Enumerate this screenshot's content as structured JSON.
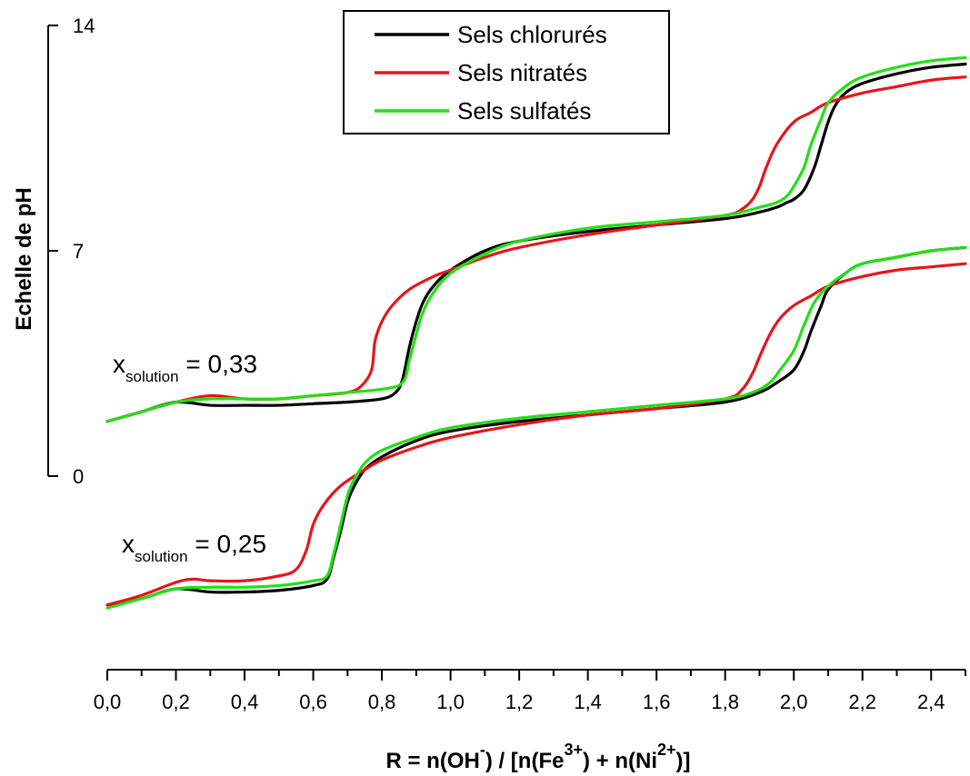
{
  "chart_data": {
    "type": "line",
    "xlabel": "R = n(OH-) / [n(Fe3+) + n(Ni2+)]",
    "xlabel_parts": {
      "base1": "R = n(OH",
      "sup1": "-",
      "base2": ") / [n(Fe",
      "sup2": "3+",
      "base3": ") + n(Ni",
      "sup3": "2+",
      "base4": ")]"
    },
    "ylabel": "Echelle de pH",
    "xlim": [
      0,
      2.5
    ],
    "x_ticks": [
      "0,0",
      "0,2",
      "0,4",
      "0,6",
      "0,8",
      "1,0",
      "1,2",
      "1,4",
      "1,6",
      "1,8",
      "2,0",
      "2,2",
      "2,4"
    ],
    "y_ticks": [
      "0",
      "7",
      "14"
    ],
    "legend": {
      "position": "top-center",
      "entries": [
        {
          "name": "Sels chlorurés",
          "color": "#000000"
        },
        {
          "name": "Sels nitratés",
          "color": "#e8141b"
        },
        {
          "name": "Sels sulfatés",
          "color": "#22e014"
        }
      ]
    },
    "annotations": [
      {
        "base": "x",
        "sub": "solution",
        "rest": " = 0,33"
      },
      {
        "base": "x",
        "sub": "solution",
        "rest": " = 0,25"
      }
    ],
    "groups": [
      {
        "label": "x_solution = 0,33",
        "y_offset": 0,
        "series": [
          {
            "name": "Sels chlorurés",
            "color": "#000000",
            "x": [
              0,
              0.1,
              0.2,
              0.3,
              0.4,
              0.5,
              0.6,
              0.7,
              0.8,
              0.84,
              0.86,
              0.88,
              0.9,
              0.92,
              0.95,
              1.0,
              1.1,
              1.2,
              1.4,
              1.6,
              1.8,
              1.9,
              1.95,
              1.98,
              2.0,
              2.03,
              2.06,
              2.08,
              2.1,
              2.12,
              2.15,
              2.2,
              2.3,
              2.4,
              2.5
            ],
            "y": [
              1.7,
              2.0,
              2.3,
              2.2,
              2.2,
              2.2,
              2.25,
              2.3,
              2.4,
              2.6,
              3.0,
              4.0,
              4.8,
              5.4,
              5.9,
              6.4,
              7.0,
              7.3,
              7.6,
              7.8,
              8.0,
              8.2,
              8.35,
              8.5,
              8.6,
              8.9,
              9.6,
              10.3,
              11.0,
              11.5,
              11.9,
              12.2,
              12.5,
              12.7,
              12.8
            ]
          },
          {
            "name": "Sels nitratés",
            "color": "#e8141b",
            "x": [
              0,
              0.1,
              0.2,
              0.3,
              0.4,
              0.5,
              0.6,
              0.7,
              0.74,
              0.77,
              0.78,
              0.8,
              0.83,
              0.88,
              0.95,
              1.0,
              1.1,
              1.2,
              1.4,
              1.6,
              1.8,
              1.85,
              1.88,
              1.9,
              1.92,
              1.95,
              2.0,
              2.05,
              2.1,
              2.2,
              2.3,
              2.4,
              2.5
            ],
            "y": [
              1.7,
              2.0,
              2.3,
              2.5,
              2.4,
              2.4,
              2.5,
              2.6,
              2.8,
              3.3,
              4.2,
              4.8,
              5.3,
              5.8,
              6.2,
              6.4,
              6.8,
              7.1,
              7.5,
              7.8,
              8.1,
              8.3,
              8.6,
              9.0,
              9.6,
              10.3,
              11.0,
              11.3,
              11.6,
              11.9,
              12.1,
              12.3,
              12.4
            ]
          },
          {
            "name": "Sels sulfatés",
            "color": "#22e014",
            "x": [
              0,
              0.1,
              0.2,
              0.3,
              0.4,
              0.5,
              0.6,
              0.7,
              0.8,
              0.86,
              0.88,
              0.9,
              0.92,
              0.95,
              1.0,
              1.1,
              1.2,
              1.4,
              1.6,
              1.8,
              1.9,
              1.95,
              1.98,
              2.0,
              2.03,
              2.05,
              2.08,
              2.1,
              2.15,
              2.2,
              2.3,
              2.4,
              2.5
            ],
            "y": [
              1.7,
              2.0,
              2.3,
              2.4,
              2.4,
              2.4,
              2.5,
              2.6,
              2.7,
              2.9,
              3.6,
              4.4,
              5.1,
              5.7,
              6.3,
              6.9,
              7.3,
              7.7,
              7.9,
              8.1,
              8.35,
              8.5,
              8.7,
              9.0,
              9.6,
              10.3,
              11.1,
              11.6,
              12.1,
              12.4,
              12.7,
              12.9,
              13.0
            ]
          }
        ]
      },
      {
        "label": "x_solution = 0,25",
        "y_offset": -5,
        "series": [
          {
            "name": "Sels chlorurés",
            "color": "#000000",
            "x": [
              0,
              0.1,
              0.2,
              0.3,
              0.4,
              0.5,
              0.6,
              0.64,
              0.66,
              0.68,
              0.7,
              0.72,
              0.75,
              0.8,
              0.9,
              1.0,
              1.2,
              1.4,
              1.6,
              1.8,
              1.9,
              1.95,
              2.0,
              2.03,
              2.05,
              2.08,
              2.1,
              2.15,
              2.2,
              2.3,
              2.4,
              2.5
            ],
            "y": [
              1.0,
              1.2,
              1.5,
              1.4,
              1.4,
              1.45,
              1.6,
              1.8,
              2.5,
              3.3,
              4.2,
              4.7,
              5.2,
              5.6,
              6.1,
              6.4,
              6.7,
              6.9,
              7.1,
              7.3,
              7.6,
              7.9,
              8.3,
              8.9,
              9.5,
              10.3,
              10.8,
              11.3,
              11.6,
              11.8,
              12.0,
              12.1
            ]
          },
          {
            "name": "Sels nitratés",
            "color": "#e8141b",
            "x": [
              0,
              0.1,
              0.2,
              0.25,
              0.3,
              0.4,
              0.5,
              0.55,
              0.58,
              0.6,
              0.63,
              0.68,
              0.75,
              0.8,
              0.9,
              1.0,
              1.2,
              1.4,
              1.6,
              1.8,
              1.85,
              1.88,
              1.9,
              1.93,
              1.96,
              2.0,
              2.05,
              2.1,
              2.2,
              2.3,
              2.4,
              2.5
            ],
            "y": [
              1.0,
              1.3,
              1.7,
              1.8,
              1.75,
              1.75,
              1.9,
              2.1,
              2.7,
              3.5,
              4.1,
              4.7,
              5.2,
              5.5,
              5.9,
              6.2,
              6.6,
              6.9,
              7.1,
              7.4,
              7.7,
              8.2,
              8.7,
              9.4,
              9.9,
              10.3,
              10.6,
              10.9,
              11.2,
              11.4,
              11.5,
              11.6
            ]
          },
          {
            "name": "Sels sulfatés",
            "color": "#22e014",
            "x": [
              0,
              0.1,
              0.2,
              0.3,
              0.4,
              0.5,
              0.6,
              0.64,
              0.66,
              0.68,
              0.7,
              0.72,
              0.75,
              0.8,
              0.9,
              1.0,
              1.2,
              1.4,
              1.6,
              1.8,
              1.88,
              1.93,
              1.96,
              2.0,
              2.03,
              2.06,
              2.1,
              2.15,
              2.2,
              2.3,
              2.4,
              2.5
            ],
            "y": [
              0.9,
              1.2,
              1.5,
              1.55,
              1.55,
              1.6,
              1.75,
              1.9,
              2.6,
              3.5,
              4.4,
              4.9,
              5.4,
              5.8,
              6.2,
              6.5,
              6.8,
              7.0,
              7.2,
              7.4,
              7.6,
              7.9,
              8.3,
              8.9,
              9.7,
              10.4,
              10.9,
              11.3,
              11.6,
              11.8,
              12.0,
              12.1
            ]
          }
        ]
      }
    ]
  }
}
